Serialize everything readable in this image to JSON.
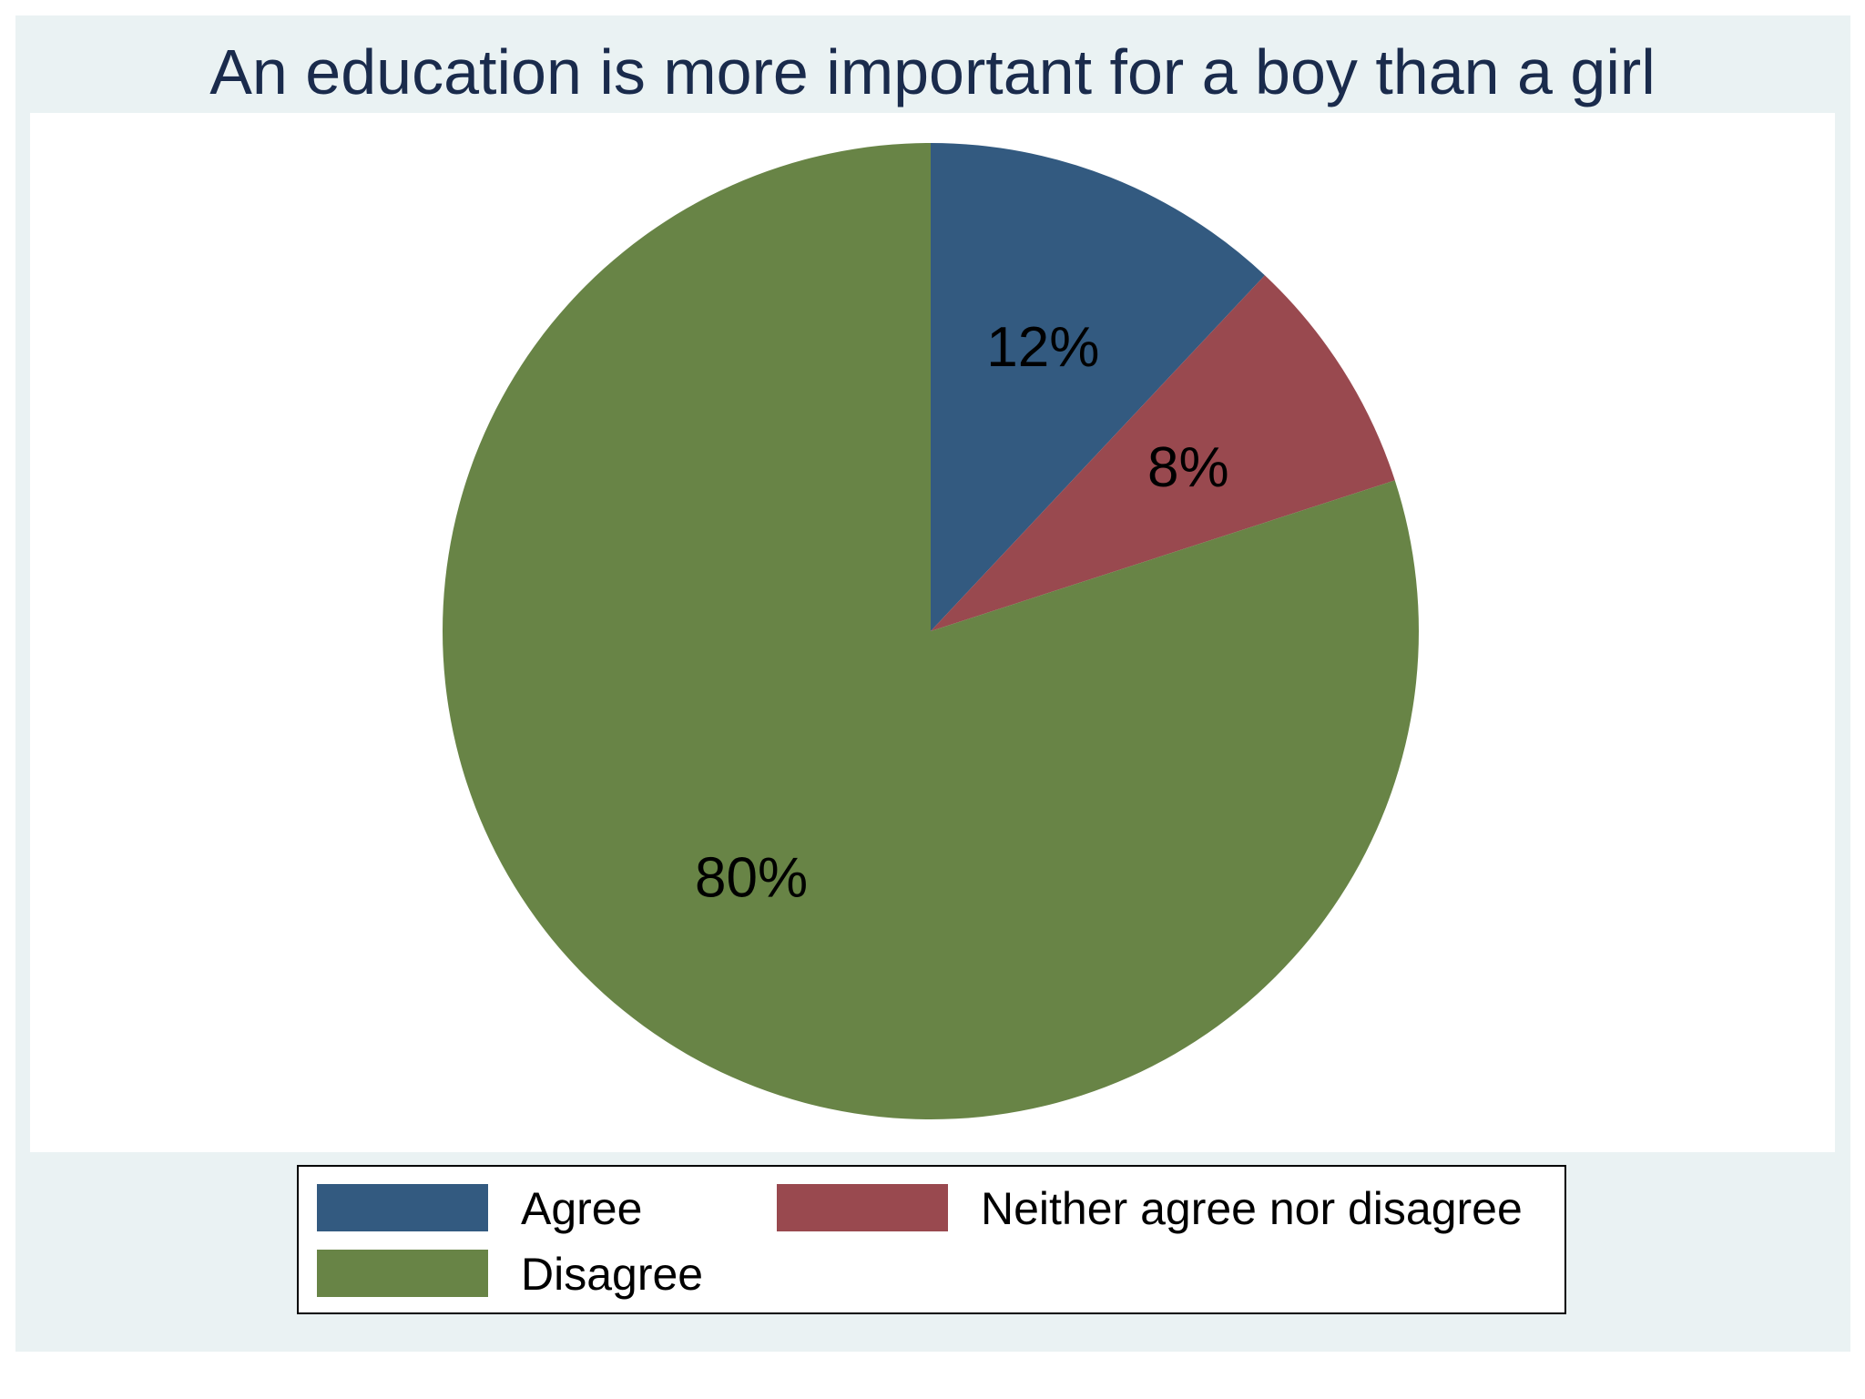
{
  "chart_data": {
    "type": "pie",
    "title": "An education is more important for a boy than a girl",
    "slices": [
      {
        "name": "Agree",
        "value": 12,
        "label": "12%",
        "color": "#335a80"
      },
      {
        "name": "Neither agree nor disagree",
        "value": 8,
        "label": "8%",
        "color": "#99494f"
      },
      {
        "name": "Disagree",
        "value": 80,
        "label": "80%",
        "color": "#688446"
      }
    ],
    "legend": {
      "placement": "bottom",
      "entries": [
        "Agree",
        "Neither agree nor disagree",
        "Disagree"
      ]
    },
    "start_angle": "12 o'clock",
    "direction": "clockwise"
  },
  "colors": {
    "figure_background": "#eaf2f3",
    "plot_background": "#ffffff",
    "title_color": "#1a2b4c"
  }
}
